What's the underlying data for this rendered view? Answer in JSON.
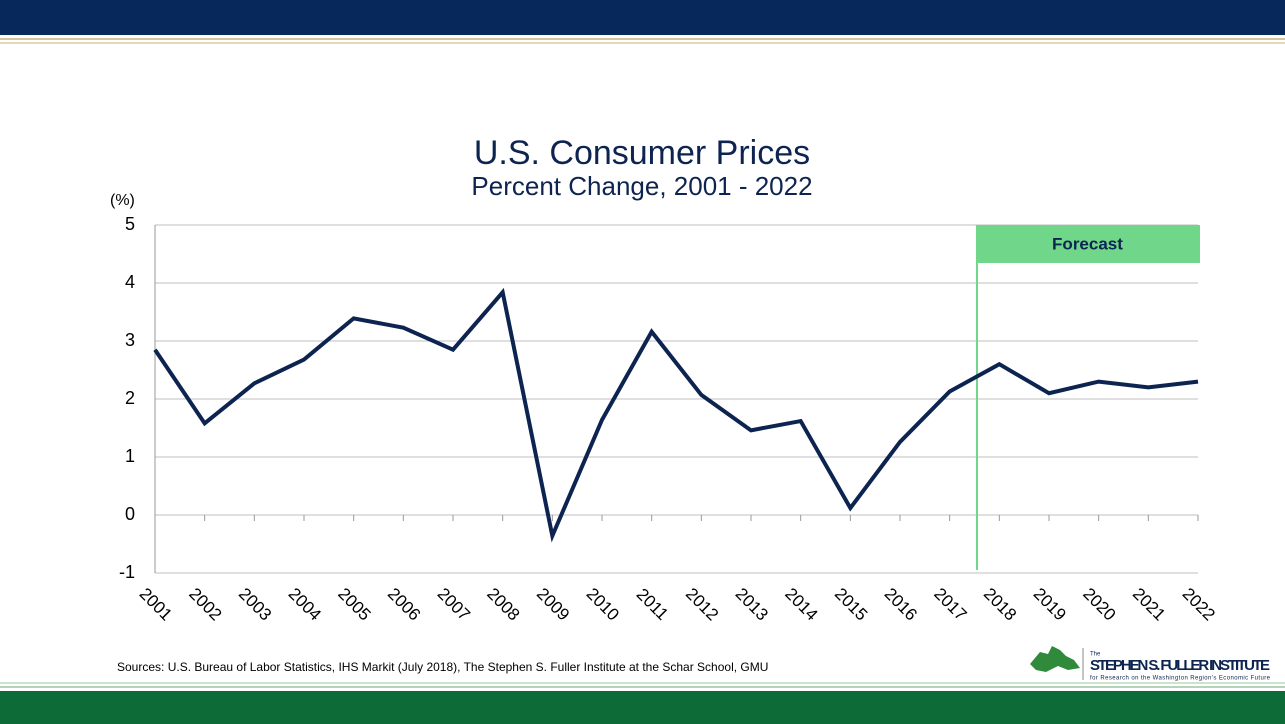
{
  "chart_data": {
    "type": "line",
    "title": "U.S. Consumer Prices",
    "subtitle": "Percent Change, 2001 - 2022",
    "y_label": "(%)",
    "categories": [
      "2001",
      "2002",
      "2003",
      "2004",
      "2005",
      "2006",
      "2007",
      "2008",
      "2009",
      "2010",
      "2011",
      "2012",
      "2013",
      "2014",
      "2015",
      "2016",
      "2017",
      "2018",
      "2019",
      "2020",
      "2021",
      "2022"
    ],
    "values": [
      2.85,
      1.58,
      2.27,
      2.68,
      3.39,
      3.23,
      2.85,
      3.84,
      -0.36,
      1.64,
      3.16,
      2.07,
      1.46,
      1.62,
      0.12,
      1.26,
      2.13,
      2.6,
      2.1,
      2.3,
      2.2,
      2.3
    ],
    "color": "#0d2451",
    "ylim": [
      -1,
      5
    ],
    "yticks": [
      -1,
      0,
      1,
      2,
      3,
      4,
      5
    ],
    "grid": true,
    "annotations": [
      {
        "text": "Forecast",
        "from": "2018",
        "color": "#6fd68a"
      }
    ],
    "source": "Sources: U.S. Bureau of Labor Statistics, IHS Markit (July 2018), The Stephen S. Fuller Institute at the Schar School, GMU"
  },
  "logo": {
    "small": "The",
    "name": "STEPHEN S. FULLER INSTITUTE",
    "tagline": "for Research on the Washington Region's Economic Future"
  }
}
